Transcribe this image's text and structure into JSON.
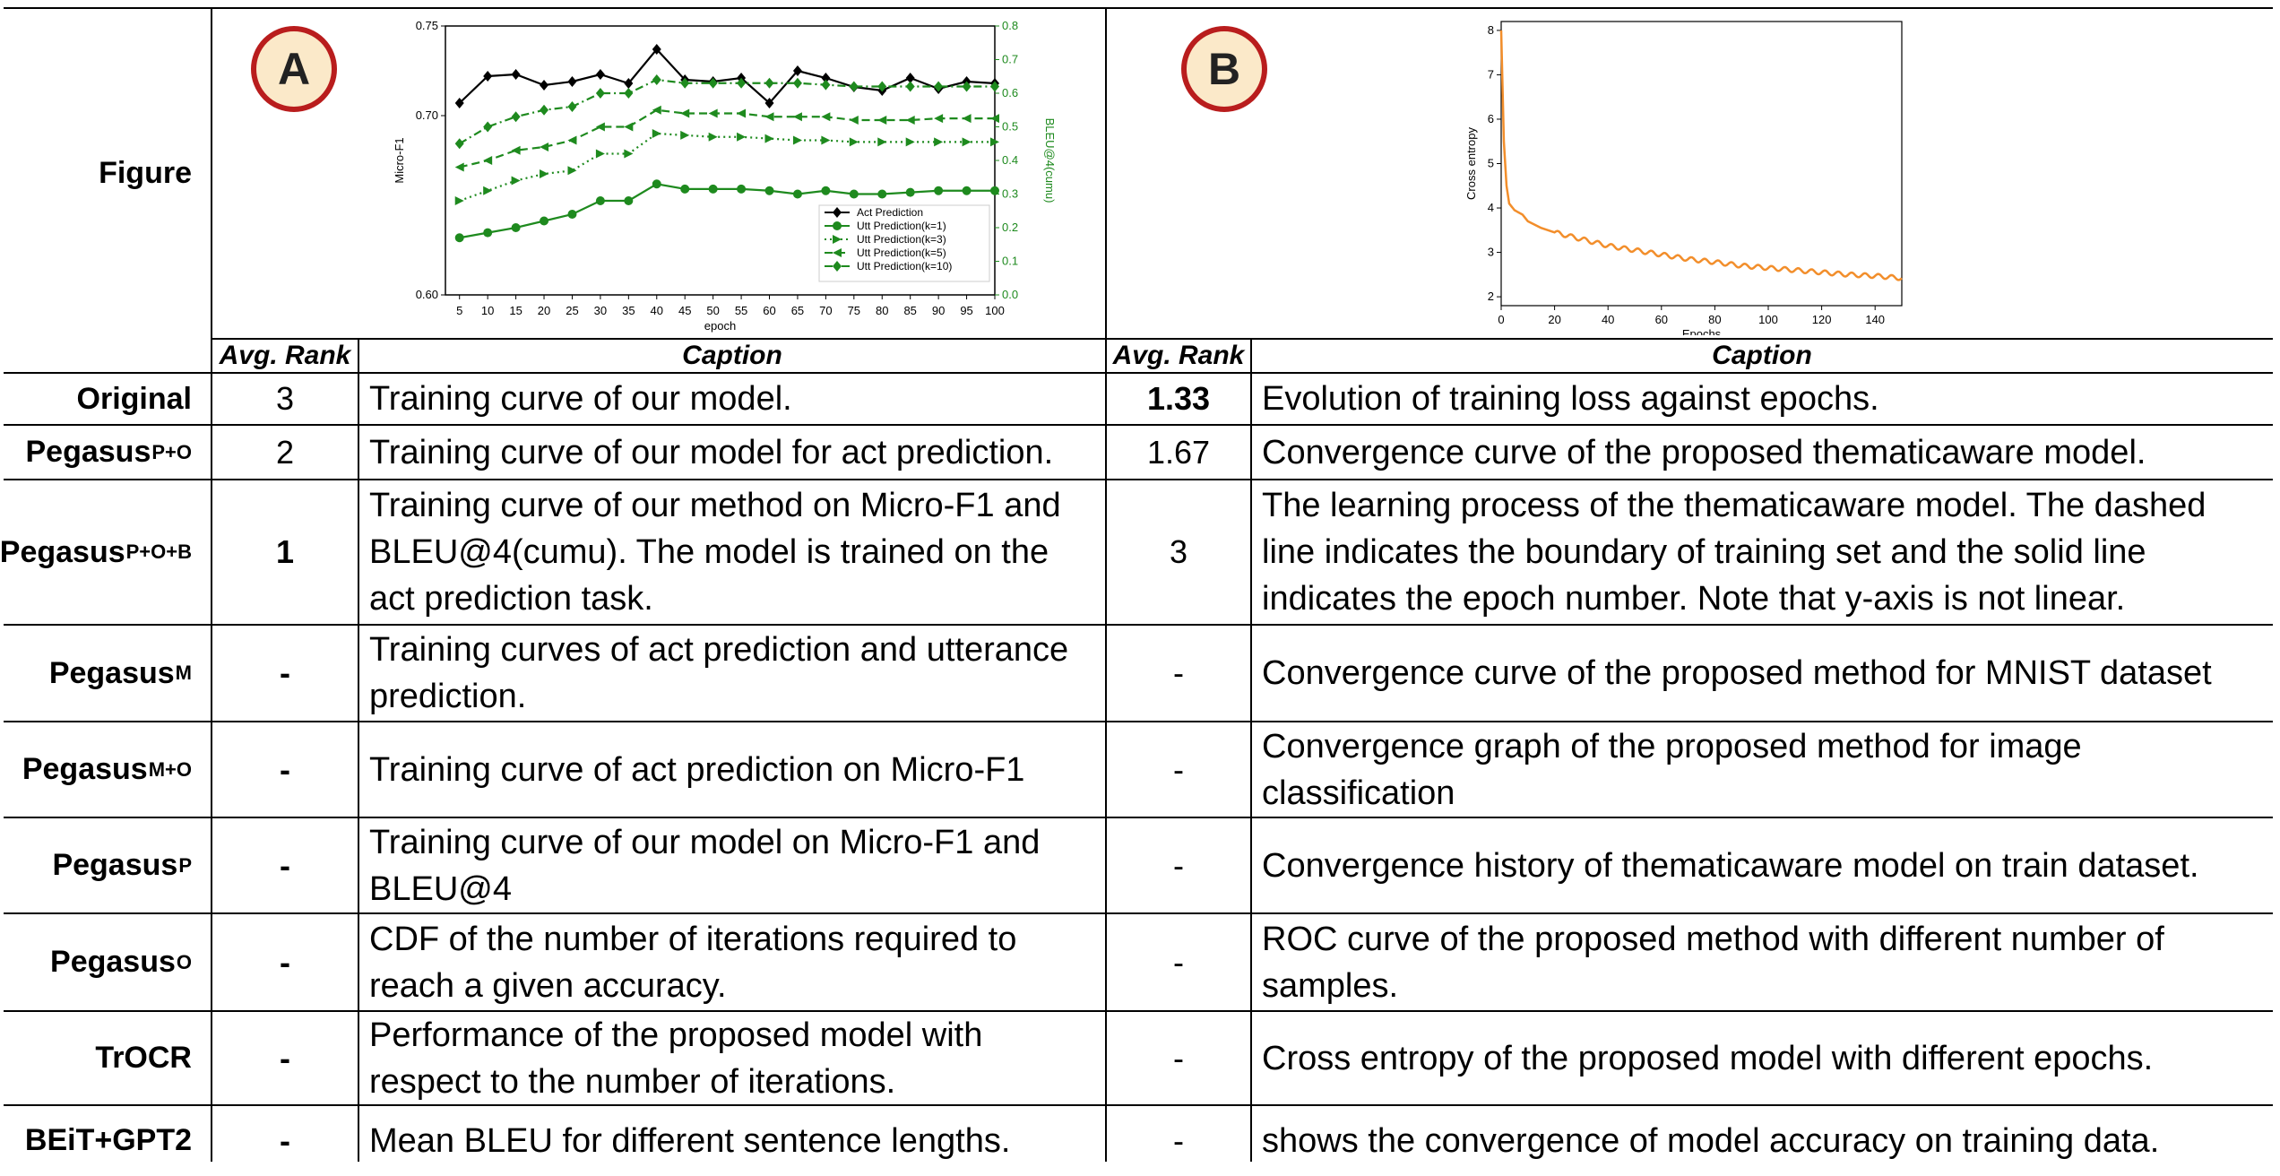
{
  "header": {
    "figure_label": "Figure",
    "badge_a": "A",
    "badge_b": "B",
    "avg_rank": "Avg. Rank",
    "caption": "Caption"
  },
  "rows": [
    {
      "base": "Original",
      "sub": "",
      "a_rank": "3",
      "a_rank_bold": false,
      "a_caption": "Training curve of our model.",
      "b_rank": "1.33",
      "b_rank_bold": true,
      "b_caption": "Evolution of training loss against epochs."
    },
    {
      "base": "Pegasus",
      "sub": "P+O",
      "a_rank": "2",
      "a_rank_bold": false,
      "a_caption": "Training curve of our model for act prediction.",
      "b_rank": "1.67",
      "b_rank_bold": false,
      "b_caption": "Convergence curve of the proposed thematicaware model."
    },
    {
      "base": "Pegasus",
      "sub": "P+O+B",
      "a_rank": "1",
      "a_rank_bold": true,
      "a_caption": "Training curve of our method on Micro-F1 and BLEU@4(cumu). The model is trained on the act prediction task.",
      "b_rank": "3",
      "b_rank_bold": false,
      "b_caption": "The learning process of the thematicaware model. The dashed line indicates the boundary of training set and the solid line indicates the epoch number. Note that y-axis is not linear."
    },
    {
      "base": "Pegasus",
      "sub": "M",
      "a_rank": "-",
      "a_rank_bold": true,
      "a_caption": "Training curves of act prediction and utterance prediction.",
      "b_rank": "-",
      "b_rank_bold": false,
      "b_caption": "Convergence curve of the proposed method for MNIST dataset"
    },
    {
      "base": "Pegasus",
      "sub": "M+O",
      "a_rank": "-",
      "a_rank_bold": true,
      "a_caption": "Training curve of act prediction on Micro-F1",
      "b_rank": "-",
      "b_rank_bold": false,
      "b_caption": "Convergence graph of the proposed method for image classification"
    },
    {
      "base": "Pegasus",
      "sub": "P",
      "a_rank": "-",
      "a_rank_bold": true,
      "a_caption": "Training curve of our model on Micro-F1 and BLEU@4",
      "b_rank": "-",
      "b_rank_bold": false,
      "b_caption": "Convergence history of thematicaware model on train dataset."
    },
    {
      "base": "Pegasus",
      "sub": "O",
      "a_rank": "-",
      "a_rank_bold": true,
      "a_caption": "CDF of the number of iterations required to reach a given accuracy.",
      "b_rank": "-",
      "b_rank_bold": false,
      "b_caption": "ROC curve of the proposed method with different number of samples."
    },
    {
      "base": "TrOCR",
      "sub": "",
      "a_rank": "-",
      "a_rank_bold": true,
      "a_caption": "Performance of the proposed model with respect to the number of iterations.",
      "b_rank": "-",
      "b_rank_bold": false,
      "b_caption": "Cross entropy of the proposed model with different epochs."
    },
    {
      "base": "BEiT+GPT2",
      "sub": "",
      "a_rank": "-",
      "a_rank_bold": true,
      "a_caption": "Mean BLEU for different sentence lengths.",
      "b_rank": "-",
      "b_rank_bold": false,
      "b_caption": "shows the convergence of model accuracy on training data."
    }
  ],
  "colors": {
    "badge_fill": "#fbe9c9",
    "badge_border": "#b91d1d",
    "series_black": "#000000",
    "series_green": "#1e8a1e",
    "right_axis_green": "#1e8a1e",
    "loss_orange": "#f28e2b"
  },
  "chart_data": [
    {
      "type": "line",
      "xlabel": "epoch",
      "ylabel": "Micro-F1",
      "ylabel_right": "BLEU@4(cumu)",
      "x": [
        5,
        10,
        15,
        20,
        25,
        30,
        35,
        40,
        45,
        50,
        55,
        60,
        65,
        70,
        75,
        80,
        85,
        90,
        95,
        100
      ],
      "xticks": [
        "5",
        "10",
        "15",
        "20",
        "25",
        "30",
        "35",
        "40",
        "45",
        "50",
        "55",
        "60",
        "65",
        "70",
        "75",
        "80",
        "85",
        "90",
        "95",
        "100"
      ],
      "ylim": [
        0.6,
        0.75
      ],
      "yticks": [
        "0.60",
        "0.70",
        "0.75"
      ],
      "ylim_right": [
        0.0,
        0.8
      ],
      "yticks_right": [
        "0.0",
        "0.1",
        "0.2",
        "0.3",
        "0.4",
        "0.5",
        "0.6",
        "0.7",
        "0.8"
      ],
      "legend_position": "lower-right",
      "series": [
        {
          "name": "Act Prediction",
          "axis": "left",
          "marker": "diamond",
          "dash": "solid",
          "color": "#000000",
          "values": [
            0.707,
            0.722,
            0.723,
            0.717,
            0.719,
            0.723,
            0.718,
            0.737,
            0.72,
            0.719,
            0.721,
            0.707,
            0.725,
            0.721,
            0.716,
            0.714,
            0.721,
            0.715,
            0.719,
            0.718
          ]
        },
        {
          "name": "Utt Prediction(k=1)",
          "axis": "right",
          "marker": "circle",
          "dash": "solid",
          "color": "#1e8a1e",
          "values": [
            0.17,
            0.185,
            0.2,
            0.22,
            0.24,
            0.28,
            0.28,
            0.33,
            0.315,
            0.315,
            0.315,
            0.31,
            0.3,
            0.31,
            0.3,
            0.3,
            0.305,
            0.31,
            0.31,
            0.31
          ]
        },
        {
          "name": "Utt Prediction(k=3)",
          "axis": "right",
          "marker": "triangle-right",
          "dash": "dotted",
          "color": "#1e8a1e",
          "values": [
            0.28,
            0.31,
            0.34,
            0.36,
            0.37,
            0.42,
            0.42,
            0.48,
            0.475,
            0.47,
            0.47,
            0.465,
            0.46,
            0.46,
            0.455,
            0.455,
            0.455,
            0.455,
            0.455,
            0.455
          ]
        },
        {
          "name": "Utt Prediction(k=5)",
          "axis": "right",
          "marker": "triangle-left",
          "dash": "dashed",
          "color": "#1e8a1e",
          "values": [
            0.38,
            0.4,
            0.43,
            0.44,
            0.46,
            0.5,
            0.5,
            0.55,
            0.54,
            0.54,
            0.54,
            0.53,
            0.53,
            0.53,
            0.52,
            0.52,
            0.52,
            0.525,
            0.525,
            0.525
          ]
        },
        {
          "name": "Utt Prediction(k=10)",
          "axis": "right",
          "marker": "diamond",
          "dash": "dashdot",
          "color": "#1e8a1e",
          "values": [
            0.45,
            0.5,
            0.53,
            0.55,
            0.56,
            0.6,
            0.6,
            0.64,
            0.63,
            0.63,
            0.63,
            0.63,
            0.63,
            0.625,
            0.62,
            0.62,
            0.62,
            0.62,
            0.62,
            0.62
          ]
        }
      ]
    },
    {
      "type": "line",
      "xlabel": "Epochs",
      "ylabel": "Cross entropy",
      "xlim": [
        0,
        150
      ],
      "xticks": [
        "0",
        "20",
        "40",
        "60",
        "80",
        "100",
        "120",
        "140"
      ],
      "ylim": [
        1.8,
        8.2
      ],
      "yticks": [
        "2",
        "3",
        "4",
        "5",
        "6",
        "7",
        "8"
      ],
      "series": [
        {
          "color": "#f28e2b",
          "x": [
            0,
            1,
            2,
            3,
            5,
            8,
            10,
            15,
            20,
            30,
            40,
            50,
            60,
            70,
            80,
            90,
            100,
            110,
            120,
            130,
            140,
            150
          ],
          "values": [
            8.0,
            5.5,
            4.5,
            4.1,
            3.95,
            3.85,
            3.7,
            3.55,
            3.45,
            3.3,
            3.15,
            3.05,
            2.95,
            2.85,
            2.78,
            2.7,
            2.65,
            2.6,
            2.55,
            2.5,
            2.47,
            2.42
          ]
        }
      ]
    }
  ]
}
